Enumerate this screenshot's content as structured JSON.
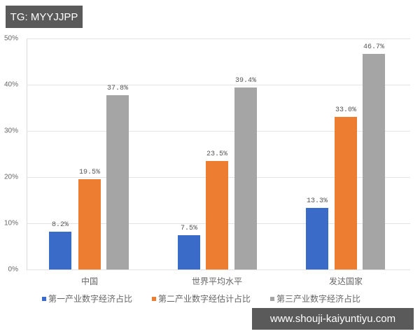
{
  "watermarks": {
    "top_left": "TG: MYYJJPP",
    "bottom_right": "www.shouji-kaiyuntiyu.com"
  },
  "colors": {
    "series1": "#3a6bc9",
    "series2": "#ed7d31",
    "series3": "#a5a5a5"
  },
  "chart_data": {
    "type": "bar",
    "title": "",
    "xlabel": "",
    "ylabel": "",
    "ylim": [
      0,
      50
    ],
    "yticks": [
      "0%",
      "10%",
      "20%",
      "30%",
      "40%",
      "50%"
    ],
    "grid": true,
    "legend_position": "bottom",
    "categories": [
      "中国",
      "世界平均水平",
      "发达国家"
    ],
    "series": [
      {
        "name": "第一产业数字经济占比",
        "values": [
          8.2,
          7.5,
          13.3
        ],
        "labels": [
          "8.2%",
          "7.5%",
          "13.3%"
        ]
      },
      {
        "name": "第二产业数字经估计占比",
        "values": [
          19.5,
          23.5,
          33.0
        ],
        "labels": [
          "19.5%",
          "23.5%",
          "33.0%"
        ]
      },
      {
        "name": "第三产业数字经济占比",
        "values": [
          37.8,
          39.4,
          46.7
        ],
        "labels": [
          "37.8%",
          "39.4%",
          "46.7%"
        ]
      }
    ]
  }
}
